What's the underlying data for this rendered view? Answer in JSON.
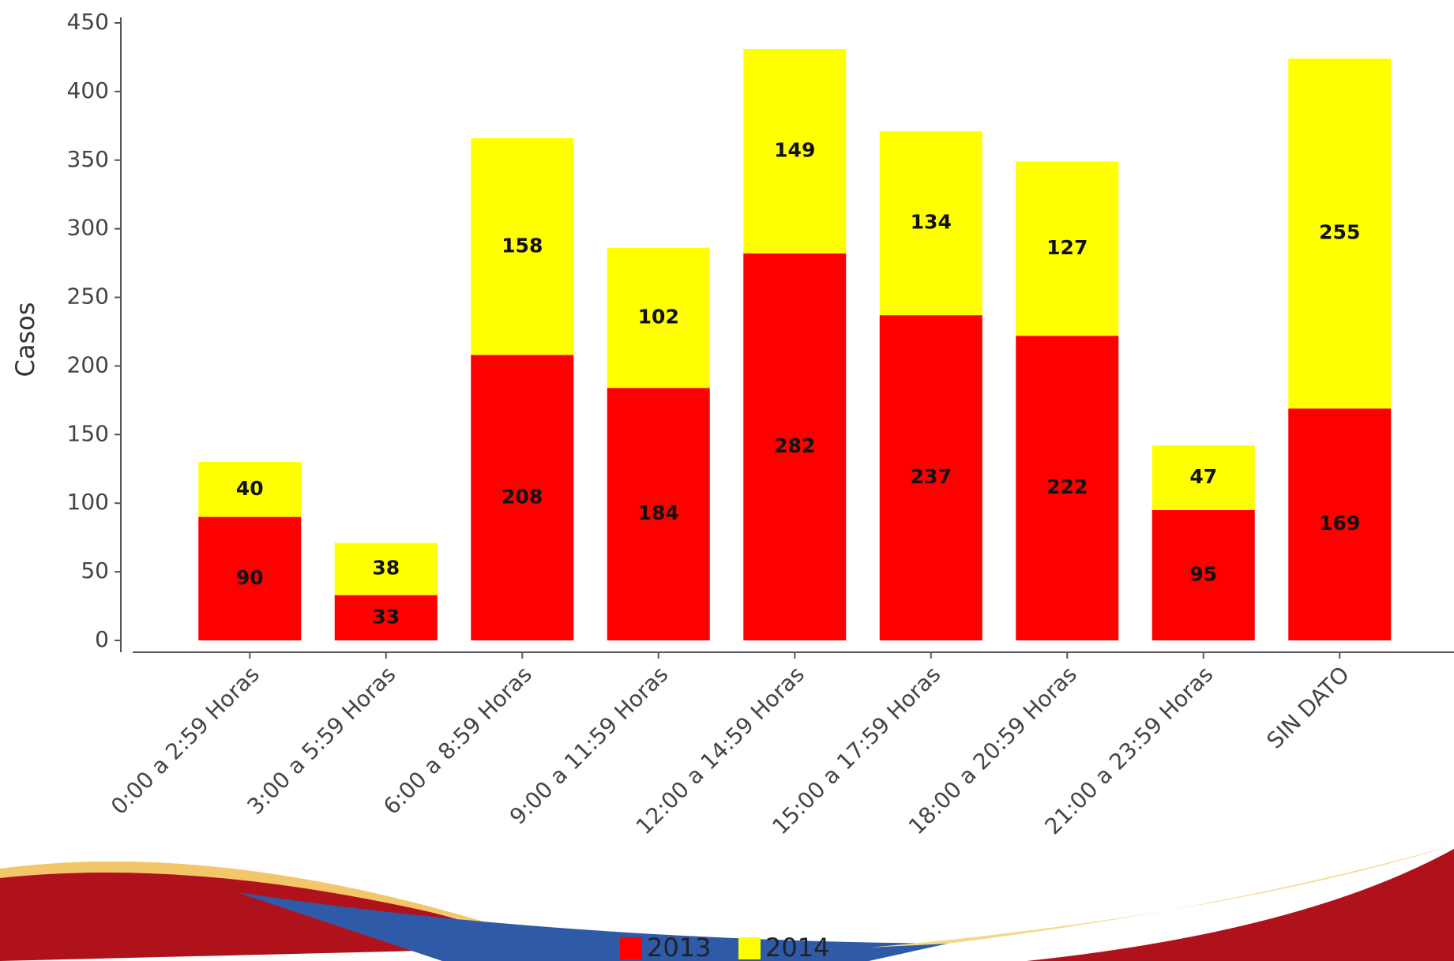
{
  "chart_data": {
    "type": "stacked_bar",
    "y_label": "Casos",
    "categories": [
      "0:00 a 2:59 Horas",
      "3:00 a 5:59 Horas",
      "6:00 a 8:59 Horas",
      "9:00 a 11:59 Horas",
      "12:00 a 14:59 Horas",
      "15:00 a 17:59 Horas",
      "18:00 a 20:59 Horas",
      "21:00 a 23:59 Horas",
      "SIN DATO"
    ],
    "series": [
      {
        "name": "2013",
        "color": "#ff0000",
        "values": [
          90,
          33,
          208,
          184,
          282,
          237,
          222,
          95,
          169
        ]
      },
      {
        "name": "2014",
        "color": "#ffff00",
        "values": [
          40,
          38,
          158,
          102,
          149,
          134,
          127,
          47,
          255
        ]
      }
    ],
    "ylim": [
      0,
      450
    ],
    "yticks": [
      0,
      50,
      100,
      150,
      200,
      250,
      300,
      350,
      400,
      450
    ],
    "grid": false
  }
}
